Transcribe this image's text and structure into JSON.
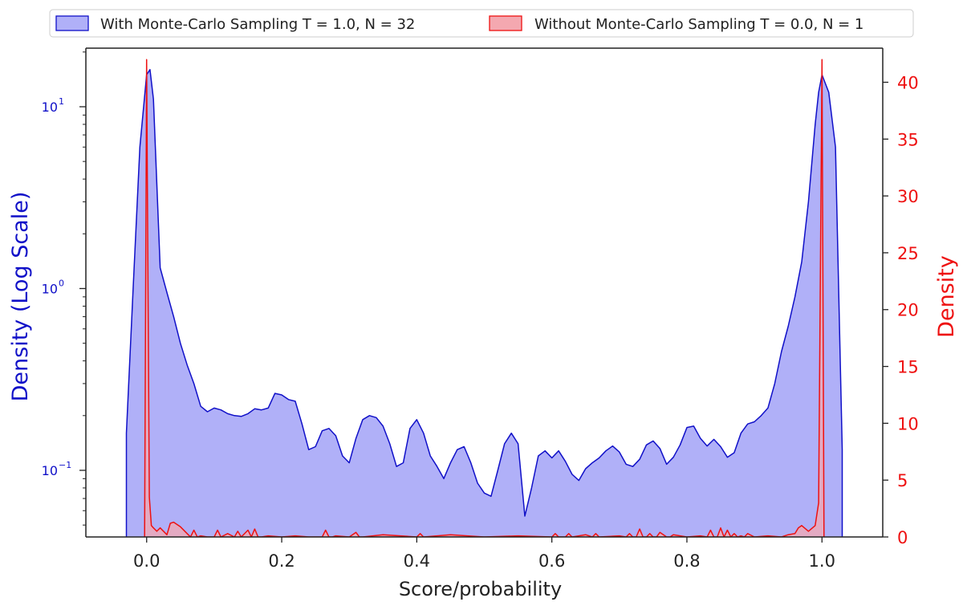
{
  "chart_data": {
    "type": "area",
    "title": "",
    "xlabel": "Score/probability",
    "ylabel_left": "Density (Log Scale)",
    "ylabel_right": "Density",
    "x_ticks": [
      0.0,
      0.2,
      0.4,
      0.6,
      0.8,
      1.0
    ],
    "x_tick_labels": [
      "0.0",
      "0.2",
      "0.4",
      "0.6",
      "0.8",
      "1.0"
    ],
    "xlim": [
      -0.09,
      1.09
    ],
    "y_left_scale": "log",
    "y_left_lim": [
      0.043,
      21
    ],
    "y_left_ticks": [
      {
        "value": 0.1,
        "base": "10",
        "exp": "−1"
      },
      {
        "value": 1,
        "base": "10",
        "exp": "0"
      },
      {
        "value": 10,
        "base": "10",
        "exp": "1"
      }
    ],
    "y_right_lim": [
      0,
      43
    ],
    "y_right_ticks": [
      0,
      5,
      10,
      15,
      20,
      25,
      30,
      35,
      40
    ],
    "y_right_tick_labels": [
      "0",
      "5",
      "10",
      "15",
      "20",
      "25",
      "30",
      "35",
      "40"
    ],
    "grid": false,
    "legend_position": "top",
    "colors": {
      "series_1_line": "#1010c8",
      "series_1_fill": "#b0b0f8",
      "series_2_line": "#ee1111",
      "series_2_fill": "#f4a8b0",
      "left_axis": "#1010c8",
      "right_axis": "#ee1111",
      "text": "#222222"
    },
    "series": [
      {
        "name": "With Monte-Carlo Sampling T = 1.0, N = 32",
        "axis": "left",
        "x": [
          -0.03,
          -0.02,
          -0.01,
          0.0,
          0.005,
          0.01,
          0.02,
          0.03,
          0.04,
          0.05,
          0.06,
          0.07,
          0.08,
          0.09,
          0.1,
          0.11,
          0.12,
          0.13,
          0.14,
          0.15,
          0.16,
          0.17,
          0.18,
          0.19,
          0.2,
          0.21,
          0.22,
          0.23,
          0.24,
          0.25,
          0.26,
          0.27,
          0.28,
          0.29,
          0.3,
          0.31,
          0.32,
          0.33,
          0.34,
          0.35,
          0.36,
          0.37,
          0.38,
          0.39,
          0.4,
          0.41,
          0.42,
          0.43,
          0.44,
          0.45,
          0.46,
          0.47,
          0.48,
          0.49,
          0.5,
          0.51,
          0.52,
          0.53,
          0.54,
          0.55,
          0.56,
          0.57,
          0.58,
          0.59,
          0.6,
          0.61,
          0.62,
          0.63,
          0.64,
          0.65,
          0.66,
          0.67,
          0.68,
          0.69,
          0.7,
          0.71,
          0.72,
          0.73,
          0.74,
          0.75,
          0.76,
          0.77,
          0.78,
          0.79,
          0.8,
          0.81,
          0.82,
          0.83,
          0.84,
          0.85,
          0.86,
          0.87,
          0.88,
          0.89,
          0.9,
          0.91,
          0.92,
          0.93,
          0.94,
          0.95,
          0.96,
          0.97,
          0.98,
          0.99,
          0.995,
          1.0,
          1.01,
          1.02,
          1.03
        ],
        "values": [
          0.16,
          1.0,
          6.0,
          15.0,
          16.0,
          11.0,
          1.3,
          0.95,
          0.7,
          0.5,
          0.38,
          0.3,
          0.225,
          0.21,
          0.22,
          0.215,
          0.205,
          0.2,
          0.198,
          0.205,
          0.218,
          0.215,
          0.22,
          0.265,
          0.26,
          0.245,
          0.24,
          0.18,
          0.13,
          0.135,
          0.165,
          0.17,
          0.155,
          0.12,
          0.11,
          0.15,
          0.19,
          0.2,
          0.195,
          0.175,
          0.14,
          0.105,
          0.11,
          0.17,
          0.19,
          0.16,
          0.12,
          0.105,
          0.09,
          0.11,
          0.13,
          0.135,
          0.11,
          0.085,
          0.075,
          0.072,
          0.1,
          0.14,
          0.16,
          0.14,
          0.056,
          0.08,
          0.12,
          0.128,
          0.117,
          0.128,
          0.112,
          0.095,
          0.088,
          0.102,
          0.11,
          0.117,
          0.128,
          0.136,
          0.126,
          0.108,
          0.105,
          0.115,
          0.138,
          0.145,
          0.132,
          0.108,
          0.118,
          0.138,
          0.172,
          0.175,
          0.15,
          0.136,
          0.148,
          0.135,
          0.118,
          0.125,
          0.16,
          0.18,
          0.185,
          0.2,
          0.22,
          0.3,
          0.45,
          0.62,
          0.9,
          1.4,
          3.0,
          8.0,
          12.0,
          15.0,
          12.0,
          6.0,
          0.13
        ]
      },
      {
        "name": "Without Monte-Carlo Sampling T = 0.0, N = 1",
        "axis": "right",
        "x": [
          -0.003,
          0.0,
          0.004,
          0.007,
          0.01,
          0.015,
          0.02,
          0.03,
          0.035,
          0.04,
          0.05,
          0.06,
          0.065,
          0.07,
          0.075,
          0.08,
          0.09,
          0.1,
          0.105,
          0.11,
          0.12,
          0.13,
          0.135,
          0.14,
          0.15,
          0.155,
          0.16,
          0.165,
          0.17,
          0.18,
          0.2,
          0.22,
          0.24,
          0.26,
          0.265,
          0.27,
          0.275,
          0.28,
          0.3,
          0.31,
          0.315,
          0.32,
          0.35,
          0.4,
          0.405,
          0.41,
          0.45,
          0.5,
          0.55,
          0.6,
          0.605,
          0.61,
          0.62,
          0.625,
          0.63,
          0.65,
          0.66,
          0.665,
          0.67,
          0.7,
          0.71,
          0.715,
          0.72,
          0.725,
          0.73,
          0.735,
          0.74,
          0.745,
          0.75,
          0.755,
          0.76,
          0.77,
          0.775,
          0.78,
          0.8,
          0.82,
          0.83,
          0.835,
          0.84,
          0.845,
          0.85,
          0.855,
          0.86,
          0.865,
          0.87,
          0.875,
          0.88,
          0.885,
          0.89,
          0.9,
          0.92,
          0.94,
          0.95,
          0.96,
          0.965,
          0.97,
          0.98,
          0.99,
          0.995,
          1.0,
          1.003
        ],
        "values": [
          0.0,
          42.0,
          3.5,
          1.0,
          0.8,
          0.5,
          0.8,
          0.2,
          1.2,
          1.3,
          0.9,
          0.3,
          0.0,
          0.6,
          0.0,
          0.1,
          0.0,
          0.0,
          0.6,
          0.0,
          0.3,
          0.0,
          0.5,
          0.0,
          0.6,
          0.0,
          0.7,
          0.0,
          0.0,
          0.1,
          0.0,
          0.1,
          0.0,
          0.0,
          0.6,
          0.0,
          0.0,
          0.1,
          0.0,
          0.4,
          0.0,
          0.0,
          0.2,
          0.0,
          0.3,
          0.0,
          0.2,
          0.0,
          0.1,
          0.0,
          0.3,
          0.0,
          0.0,
          0.3,
          0.0,
          0.2,
          0.0,
          0.3,
          0.0,
          0.1,
          0.0,
          0.3,
          0.0,
          0.0,
          0.7,
          0.0,
          0.0,
          0.3,
          0.0,
          0.0,
          0.4,
          0.0,
          0.0,
          0.2,
          0.0,
          0.1,
          0.0,
          0.6,
          0.0,
          0.0,
          0.8,
          0.0,
          0.6,
          0.0,
          0.3,
          0.0,
          0.1,
          0.0,
          0.3,
          0.0,
          0.1,
          0.0,
          0.2,
          0.3,
          0.8,
          1.0,
          0.5,
          1.0,
          3.0,
          42.0,
          0.0
        ]
      }
    ]
  }
}
